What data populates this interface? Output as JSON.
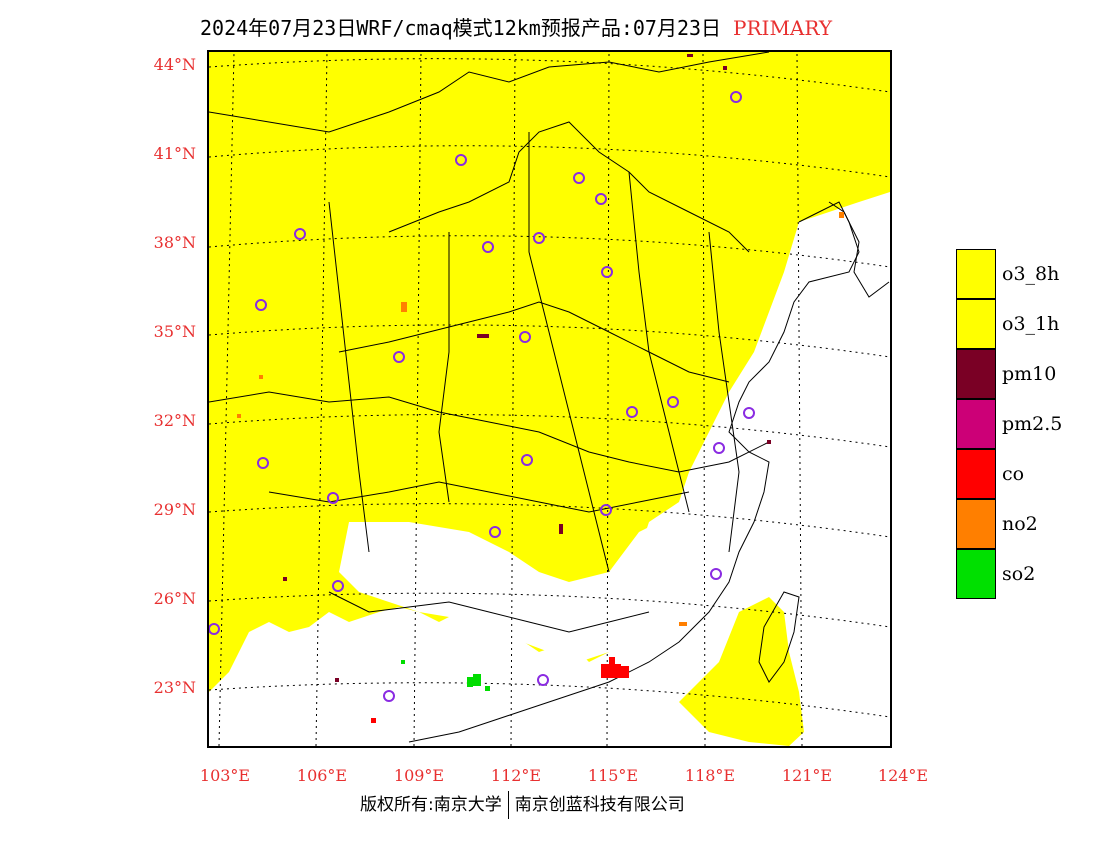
{
  "header": {
    "title": "2024年07月23日WRF/cmaq模式12km预报产品:07月23日",
    "tag": "PRIMARY"
  },
  "map": {
    "lat_labels": [
      "44°N",
      "41°N",
      "38°N",
      "35°N",
      "32°N",
      "29°N",
      "26°N",
      "23°N"
    ],
    "lon_labels": [
      "103°E",
      "106°E",
      "109°E",
      "112°E",
      "115°E",
      "118°E",
      "121°E",
      "124°E"
    ],
    "fill_color": "#ffff00",
    "city_marker_color": "#8a2be2"
  },
  "legend": {
    "items": [
      {
        "label": "o3_8h",
        "color": "#ffff00"
      },
      {
        "label": "o3_1h",
        "color": "#ffff00"
      },
      {
        "label": "pm10",
        "color": "#7a0025"
      },
      {
        "label": "pm2.5",
        "color": "#cc0077"
      },
      {
        "label": "co",
        "color": "#ff0000"
      },
      {
        "label": "no2",
        "color": "#ff7f00"
      },
      {
        "label": "so2",
        "color": "#00e000"
      }
    ]
  },
  "footer": {
    "copyright": "版权所有:南京大学",
    "company": "南京创蓝科技有限公司"
  }
}
